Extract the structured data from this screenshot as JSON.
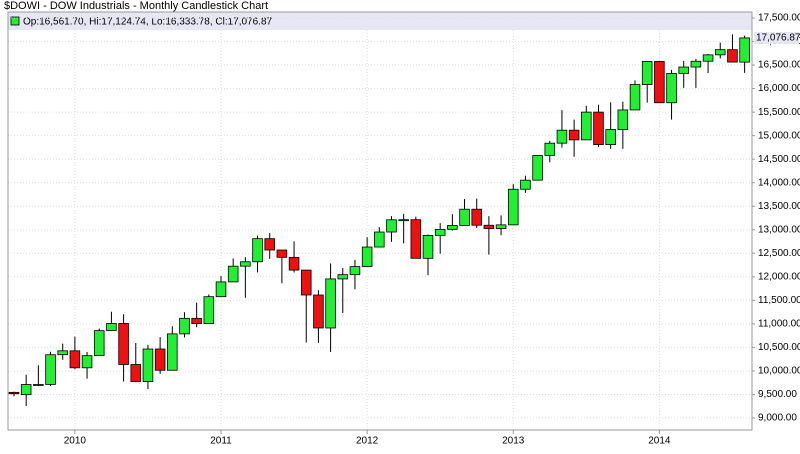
{
  "chart_data": {
    "type": "candlestick",
    "title": "$DOWI - DOW Industrials - Monthly Candlestick Chart",
    "legend": "Op:16,561.70, Hi:17,124.74, Lo:16,333.78, Cl:17,076.87",
    "up_color": "#22ee33",
    "down_color": "#ee1111",
    "grid": true,
    "ylim": [
      9000,
      17500
    ],
    "yticks": [
      {
        "value": 9000,
        "label": "9,000.00"
      },
      {
        "value": 9500,
        "label": "9,500.00"
      },
      {
        "value": 10000,
        "label": "10,000.00"
      },
      {
        "value": 10500,
        "label": "10,500.00"
      },
      {
        "value": 11000,
        "label": "11,000.00"
      },
      {
        "value": 11500,
        "label": "11,500.00"
      },
      {
        "value": 12000,
        "label": "12,000.00"
      },
      {
        "value": 12500,
        "label": "12,500.00"
      },
      {
        "value": 13000,
        "label": "13,000.00"
      },
      {
        "value": 13500,
        "label": "13,500.00"
      },
      {
        "value": 14000,
        "label": "14,000.00"
      },
      {
        "value": 14500,
        "label": "14,500.00"
      },
      {
        "value": 15000,
        "label": "15,000.00"
      },
      {
        "value": 15500,
        "label": "15,500.00"
      },
      {
        "value": 16000,
        "label": "16,000.00"
      },
      {
        "value": 16500,
        "label": "16,500.00"
      },
      {
        "value": 17000,
        "label": "17,000.00"
      },
      {
        "value": 17500,
        "label": "17,500.00"
      }
    ],
    "xticks": [
      {
        "value": 5,
        "label": "2010"
      },
      {
        "value": 17,
        "label": "2011"
      },
      {
        "value": 29,
        "label": "2012"
      },
      {
        "value": 41,
        "label": "2013"
      },
      {
        "value": 53,
        "label": "2014"
      }
    ],
    "last_value": {
      "value": 17076.87,
      "label": "17,076.87"
    },
    "open": [
      9545,
      9496,
      9712,
      9713,
      10345,
      10428,
      10067,
      10325,
      10857,
      11009,
      10137,
      9774,
      10466,
      10015,
      10788,
      11118,
      11006,
      11578,
      11892,
      12226,
      12320,
      12811,
      12570,
      12414,
      12143,
      11614,
      10913,
      11955,
      12046,
      12218,
      12633,
      12952,
      13212,
      13214,
      12393,
      12880,
      13009,
      13091,
      13437,
      13096,
      13026,
      13104,
      13861,
      14054,
      14579,
      14840,
      15116,
      14910,
      15500,
      14810,
      15130,
      15546,
      16086,
      16577,
      15699,
      16322,
      16458,
      16581,
      16717,
      16827,
      16561.7
    ],
    "high": [
      9560,
      9918,
      10119,
      10406,
      10580,
      10730,
      10402,
      10901,
      11258,
      11205,
      10594,
      10555,
      10720,
      10948,
      11247,
      11452,
      11625,
      12021,
      12391,
      12418,
      12876,
      12929,
      12570,
      12754,
      12143,
      11717,
      12284,
      12188,
      12361,
      12842,
      13056,
      13290,
      13338,
      13279,
      12899,
      13140,
      13331,
      13653,
      13662,
      13290,
      13307,
      13969,
      14149,
      14585,
      14888,
      15542,
      15340,
      15634,
      15658,
      15709,
      15722,
      16174,
      16588,
      16588,
      16398,
      16588,
      16631,
      16736,
      16978,
      17152,
      17124.74
    ],
    "low": [
      9460,
      9253,
      9679,
      9678,
      10236,
      10039,
      9835,
      10325,
      10857,
      9775,
      9758,
      9614,
      9936,
      10015,
      10712,
      10929,
      11006,
      11578,
      11892,
      11555,
      12093,
      12381,
      11863,
      12093,
      10605,
      10597,
      10404,
      11231,
      11735,
      12218,
      12633,
      12744,
      12710,
      12391,
      12035,
      12492,
      12983,
      13091,
      13036,
      12471,
      12884,
      13104,
      13784,
      14054,
      14434,
      14746,
      14551,
      14910,
      14760,
      14720,
      14720,
      15546,
      15703,
      15699,
      15341,
      16016,
      16015,
      16330,
      16640,
      16562,
      16333.78
    ],
    "close": [
      9515,
      9712,
      9713,
      10345,
      10428,
      10067,
      10325,
      10857,
      11009,
      10137,
      9774,
      10466,
      10015,
      10788,
      11118,
      11006,
      11578,
      11892,
      12226,
      12320,
      12811,
      12570,
      12414,
      12143,
      11614,
      10913,
      11955,
      12046,
      12218,
      12633,
      12952,
      13212,
      13214,
      12393,
      12880,
      13009,
      13091,
      13437,
      13096,
      13026,
      13104,
      13861,
      14054,
      14579,
      14840,
      15116,
      14910,
      15500,
      14810,
      15130,
      15546,
      16086,
      16577,
      15699,
      16322,
      16458,
      16581,
      16717,
      16827,
      16563,
      17076.87
    ]
  }
}
